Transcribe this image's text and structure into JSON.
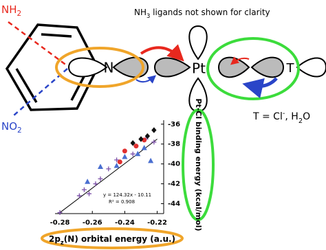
{
  "diagram": {
    "note": {
      "main": "NH",
      "sub": "3",
      "rest": " ligands not shown for clarity"
    },
    "substituent_top": {
      "main": "NH",
      "sub": "2"
    },
    "substituent_bottom": {
      "main": "NO",
      "sub": "2"
    },
    "nitrogen": "N",
    "platinum": "Pt",
    "trans_ligand": "T",
    "ligand_definition": {
      "main": "T = Cl",
      "sup": "-",
      "mid": ", H",
      "sub": "2",
      "end": "O"
    }
  },
  "chart_data": {
    "type": "scatter",
    "x_label": {
      "main": "2p",
      "sub": "z",
      "rest": "(N) orbital energy (a.u.)"
    },
    "y_label": "Pt-Cl binding energy (kcal/mol)",
    "annotations": [
      "y = 124.32x - 10.11",
      "R² = 0.908"
    ],
    "xlim": [
      -0.283,
      -0.216
    ],
    "ylim": [
      -45,
      -35.6
    ],
    "xticks": [
      -0.28,
      -0.26,
      -0.24,
      -0.22
    ],
    "yticks": [
      -36,
      -38,
      -40,
      -42,
      -44
    ],
    "series": [
      {
        "color": "#7b4fa8",
        "marker": "cross",
        "x": [
          -0.28,
          -0.268,
          -0.265,
          -0.262,
          -0.258,
          -0.255,
          -0.25,
          -0.245,
          -0.235,
          -0.227,
          -0.222
        ],
        "values": [
          -44.9,
          -43.2,
          -42.6,
          -43.0,
          -42.0,
          -41.5,
          -40.5,
          -39.6,
          -39.0,
          -37.5,
          -37.8
        ]
      },
      {
        "color": "#4a6fd0",
        "marker": "triangle",
        "x": [
          -0.263,
          -0.255,
          -0.245,
          -0.24,
          -0.232,
          -0.228,
          -0.224
        ],
        "values": [
          -41.8,
          -40.3,
          -40.2,
          -39.3,
          -39.0,
          -38.4,
          -39.7
        ]
      },
      {
        "color": "#e03030",
        "marker": "circle",
        "x": [
          -0.243,
          -0.24,
          -0.233,
          -0.228
        ],
        "values": [
          -39.8,
          -38.7,
          -38.2,
          -37.6
        ]
      },
      {
        "color": "#111111",
        "marker": "diamond",
        "x": [
          -0.235,
          -0.23,
          -0.226,
          -0.222
        ],
        "values": [
          -37.9,
          -37.5,
          -37.2,
          -36.6
        ]
      }
    ],
    "trendline": {
      "color": "#000000",
      "x": [
        -0.28,
        -0.22
      ],
      "values": [
        -44.9,
        -37.5
      ]
    }
  }
}
